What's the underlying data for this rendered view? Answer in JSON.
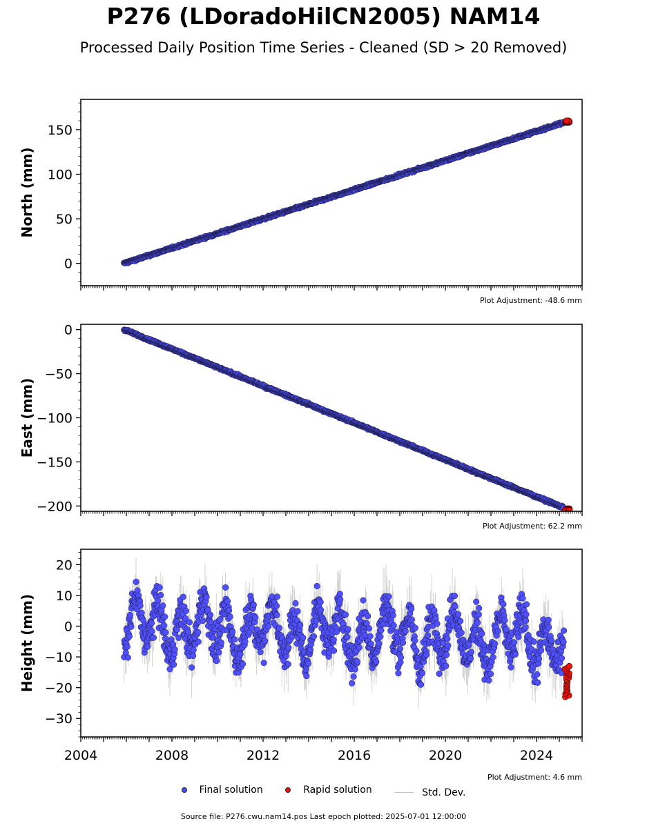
{
  "title": "P276 (LDoradoHilCN2005) NAM14",
  "subtitle": "Processed Daily Position Time Series - Cleaned (SD > 20 Removed)",
  "colors": {
    "final": "#4f4ffb",
    "rapid": "#e8150f",
    "std": "#9a9a9a"
  },
  "legend": {
    "final": "Final solution",
    "rapid": "Rapid solution",
    "std": "Std. Dev."
  },
  "source": "Source file: P276.cwu.nam14.pos  Last epoch plotted: 2025-07-01 12:00:00",
  "chart_data": [
    {
      "type": "scatter",
      "ylabel": "North (mm)",
      "adjustment": "Plot Adjustment: -48.6 mm",
      "xlim": [
        2004,
        2026
      ],
      "ylim": [
        -25,
        184
      ],
      "yticks": [
        0,
        50,
        100,
        150
      ],
      "ytick_labels": [
        "0",
        "50",
        "100",
        "150"
      ],
      "xtick_labels_shown": false,
      "final": {
        "x_range": [
          2005.9,
          2025.2
        ],
        "y_range": [
          0,
          158
        ],
        "trend": "linear",
        "scatter_mm": 1.5,
        "err_mm": 2
      },
      "rapid": {
        "x_range": [
          2025.25,
          2025.45
        ],
        "y_range": [
          158,
          160
        ]
      }
    },
    {
      "type": "scatter",
      "ylabel": "East (mm)",
      "adjustment": "Plot Adjustment: 62.2 mm",
      "xlim": [
        2004,
        2026
      ],
      "ylim": [
        -206,
        6
      ],
      "yticks": [
        0,
        -50,
        -100,
        -150,
        -200
      ],
      "ytick_labels": [
        "0",
        "−50",
        "−100",
        "−150",
        "−200"
      ],
      "xtick_labels_shown": false,
      "final": {
        "x_range": [
          2005.9,
          2025.2
        ],
        "y_range": [
          0,
          -202
        ],
        "trend": "linear",
        "scatter_mm": 1.5,
        "err_mm": 2
      },
      "rapid": {
        "x_range": [
          2025.25,
          2025.45
        ],
        "y_range": [
          -203,
          -205
        ]
      }
    },
    {
      "type": "scatter",
      "ylabel": "Height (mm)",
      "adjustment": "Plot Adjustment: 4.6 mm",
      "xlim": [
        2004,
        2026
      ],
      "ylim": [
        -36,
        25
      ],
      "yticks": [
        20,
        10,
        0,
        -10,
        -20,
        -30
      ],
      "ytick_labels": [
        "20",
        "10",
        "0",
        "−10",
        "−20",
        "−30"
      ],
      "xtick_labels_shown": true,
      "xticks": [
        2004,
        2008,
        2012,
        2016,
        2020,
        2024
      ],
      "xtick_labels": [
        "2004",
        "2008",
        "2012",
        "2016",
        "2020",
        "2024"
      ],
      "final": {
        "x_range": [
          2005.9,
          2025.2
        ],
        "y_range": [
          -30,
          21
        ],
        "trend": "seasonal, slight downward",
        "scatter_mm": 6,
        "err_mm": 7
      },
      "rapid": {
        "x_range": [
          2025.25,
          2025.45
        ],
        "y_range": [
          -23,
          -13
        ]
      }
    }
  ]
}
